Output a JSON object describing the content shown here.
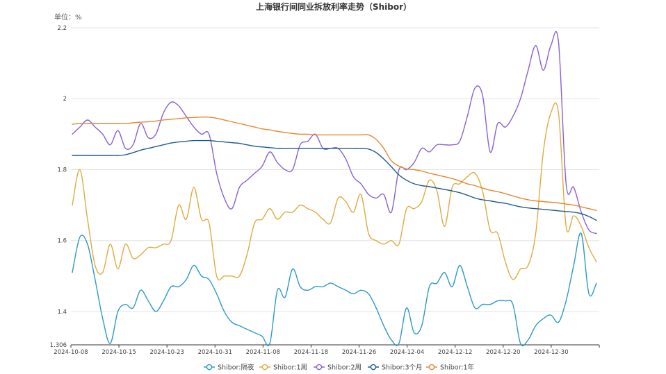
{
  "chart_data": {
    "type": "line",
    "title": "上海银行间同业拆放利率走势（Shibor）",
    "unit_label": "单位：%",
    "ylim": [
      1.306,
      2.2
    ],
    "y_ticks": [
      1.306,
      1.4,
      1.6,
      1.8,
      2,
      2.2
    ],
    "y_tick_labels": [
      "1.306",
      "1.4",
      "1.6",
      "1.8",
      "2",
      "2.2"
    ],
    "x_ticks": [
      "2024-10-08",
      "2024-10-15",
      "2024-10-23",
      "2024-10-31",
      "2024-11-08",
      "2024-11-18",
      "2024-11-26",
      "2024-12-04",
      "2024-12-12",
      "2024-12-20",
      "2024-12-30"
    ],
    "grid": true,
    "legend_position": "bottom",
    "series": [
      {
        "name": "Shibor:隔夜",
        "color": "#2a9ac8",
        "values": [
          1.51,
          1.61,
          1.59,
          1.49,
          1.38,
          1.31,
          1.4,
          1.42,
          1.41,
          1.46,
          1.43,
          1.4,
          1.43,
          1.47,
          1.47,
          1.49,
          1.53,
          1.5,
          1.49,
          1.45,
          1.4,
          1.37,
          1.36,
          1.35,
          1.34,
          1.33,
          1.31,
          1.46,
          1.44,
          1.52,
          1.47,
          1.46,
          1.47,
          1.47,
          1.48,
          1.47,
          1.46,
          1.45,
          1.46,
          1.45,
          1.41,
          1.36,
          1.32,
          1.31,
          1.41,
          1.34,
          1.36,
          1.47,
          1.48,
          1.51,
          1.47,
          1.53,
          1.47,
          1.41,
          1.42,
          1.42,
          1.43,
          1.43,
          1.42,
          1.31,
          1.32,
          1.36,
          1.38,
          1.39,
          1.37,
          1.43,
          1.53,
          1.62,
          1.45,
          1.48
        ]
      },
      {
        "name": "Shibor:1周",
        "color": "#e0aa3e",
        "values": [
          1.7,
          1.8,
          1.66,
          1.53,
          1.51,
          1.59,
          1.52,
          1.59,
          1.55,
          1.56,
          1.58,
          1.58,
          1.59,
          1.6,
          1.7,
          1.66,
          1.75,
          1.66,
          1.65,
          1.5,
          1.5,
          1.5,
          1.5,
          1.56,
          1.65,
          1.66,
          1.69,
          1.66,
          1.68,
          1.68,
          1.7,
          1.69,
          1.68,
          1.66,
          1.65,
          1.72,
          1.71,
          1.68,
          1.73,
          1.62,
          1.6,
          1.59,
          1.6,
          1.59,
          1.69,
          1.69,
          1.71,
          1.77,
          1.74,
          1.64,
          1.75,
          1.76,
          1.78,
          1.79,
          1.74,
          1.63,
          1.62,
          1.54,
          1.49,
          1.52,
          1.53,
          1.62,
          1.85,
          1.96,
          1.96,
          1.64,
          1.67,
          1.64,
          1.58,
          1.54
        ]
      },
      {
        "name": "Shibor:2周",
        "color": "#8a5fd6",
        "values": [
          1.9,
          1.92,
          1.94,
          1.92,
          1.9,
          1.87,
          1.91,
          1.86,
          1.87,
          1.93,
          1.89,
          1.9,
          1.96,
          1.99,
          1.98,
          1.95,
          1.92,
          1.9,
          1.9,
          1.79,
          1.72,
          1.69,
          1.75,
          1.77,
          1.79,
          1.81,
          1.85,
          1.82,
          1.8,
          1.8,
          1.87,
          1.88,
          1.9,
          1.86,
          1.86,
          1.86,
          1.83,
          1.78,
          1.76,
          1.73,
          1.72,
          1.73,
          1.68,
          1.8,
          1.8,
          1.82,
          1.86,
          1.85,
          1.87,
          1.87,
          1.87,
          1.88,
          1.95,
          2.03,
          2.01,
          1.85,
          1.93,
          1.92,
          1.95,
          2.0,
          2.08,
          2.15,
          2.08,
          2.15,
          2.16,
          1.76,
          1.75,
          1.68,
          1.63,
          1.62
        ]
      },
      {
        "name": "Shibor:3个月",
        "color": "#1d5b8c",
        "values": [
          1.84,
          1.84,
          1.84,
          1.84,
          1.84,
          1.84,
          1.84,
          1.842,
          1.848,
          1.855,
          1.86,
          1.865,
          1.87,
          1.875,
          1.878,
          1.88,
          1.882,
          1.882,
          1.882,
          1.88,
          1.878,
          1.876,
          1.874,
          1.87,
          1.866,
          1.864,
          1.862,
          1.86,
          1.86,
          1.86,
          1.86,
          1.86,
          1.86,
          1.86,
          1.86,
          1.86,
          1.86,
          1.86,
          1.86,
          1.858,
          1.848,
          1.83,
          1.808,
          1.785,
          1.77,
          1.76,
          1.755,
          1.752,
          1.748,
          1.744,
          1.74,
          1.735,
          1.728,
          1.72,
          1.715,
          1.712,
          1.708,
          1.705,
          1.7,
          1.695,
          1.692,
          1.69,
          1.688,
          1.686,
          1.684,
          1.682,
          1.68,
          1.676,
          1.668,
          1.657
        ]
      },
      {
        "name": "Shibor:1年",
        "color": "#e8872e",
        "values": [
          1.928,
          1.93,
          1.93,
          1.93,
          1.93,
          1.93,
          1.93,
          1.93,
          1.932,
          1.934,
          1.935,
          1.937,
          1.94,
          1.942,
          1.944,
          1.946,
          1.947,
          1.948,
          1.948,
          1.945,
          1.94,
          1.935,
          1.93,
          1.925,
          1.92,
          1.915,
          1.912,
          1.908,
          1.905,
          1.902,
          1.9,
          1.9,
          1.898,
          1.898,
          1.898,
          1.898,
          1.898,
          1.898,
          1.898,
          1.898,
          1.885,
          1.86,
          1.825,
          1.81,
          1.802,
          1.8,
          1.796,
          1.79,
          1.785,
          1.78,
          1.775,
          1.768,
          1.76,
          1.755,
          1.748,
          1.742,
          1.738,
          1.732,
          1.726,
          1.72,
          1.715,
          1.712,
          1.71,
          1.708,
          1.706,
          1.703,
          1.7,
          1.695,
          1.69,
          1.685
        ]
      }
    ]
  }
}
